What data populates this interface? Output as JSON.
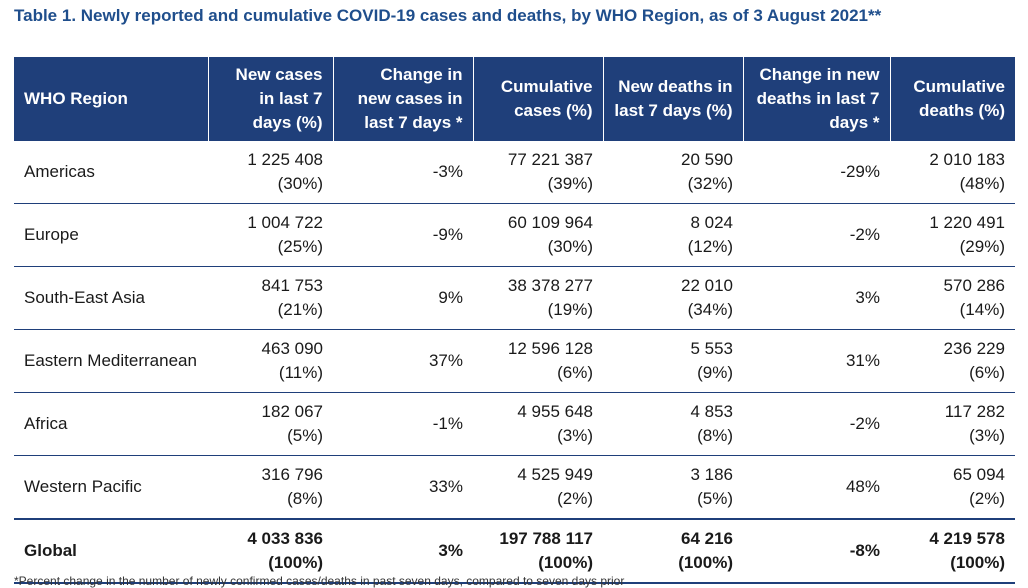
{
  "title": "Table 1. Newly reported and cumulative COVID-19 cases and deaths, by WHO Region, as of 3 August 2021**",
  "headers": {
    "region": "WHO Region",
    "new_cases": "New cases in last 7 days (%)",
    "change_cases": "Change in new cases in last 7 days *",
    "cum_cases": "Cumulative cases (%)",
    "new_deaths": "New deaths in last 7 days (%)",
    "change_deaths": "Change in new deaths in last 7 days *",
    "cum_deaths": "Cumulative deaths (%)"
  },
  "rows": [
    {
      "region": "Americas",
      "new_cases": "1 225 408",
      "new_cases_pct": "(30%)",
      "change_cases": "-3%",
      "cum_cases": "77 221 387",
      "cum_cases_pct": "(39%)",
      "new_deaths": "20 590",
      "new_deaths_pct": "(32%)",
      "change_deaths": "-29%",
      "cum_deaths": "2 010 183",
      "cum_deaths_pct": "(48%)"
    },
    {
      "region": "Europe",
      "new_cases": "1 004 722",
      "new_cases_pct": "(25%)",
      "change_cases": "-9%",
      "cum_cases": "60 109 964",
      "cum_cases_pct": "(30%)",
      "new_deaths": "8 024",
      "new_deaths_pct": "(12%)",
      "change_deaths": "-2%",
      "cum_deaths": "1 220 491",
      "cum_deaths_pct": "(29%)"
    },
    {
      "region": "South-East Asia",
      "new_cases": "841 753",
      "new_cases_pct": "(21%)",
      "change_cases": "9%",
      "cum_cases": "38 378 277",
      "cum_cases_pct": "(19%)",
      "new_deaths": "22 010",
      "new_deaths_pct": "(34%)",
      "change_deaths": "3%",
      "cum_deaths": "570 286",
      "cum_deaths_pct": "(14%)"
    },
    {
      "region": "Eastern Mediterranean",
      "new_cases": "463 090",
      "new_cases_pct": "(11%)",
      "change_cases": "37%",
      "cum_cases": "12 596 128",
      "cum_cases_pct": "(6%)",
      "new_deaths": "5 553",
      "new_deaths_pct": "(9%)",
      "change_deaths": "31%",
      "cum_deaths": "236 229",
      "cum_deaths_pct": "(6%)"
    },
    {
      "region": "Africa",
      "new_cases": "182 067",
      "new_cases_pct": "(5%)",
      "change_cases": "-1%",
      "cum_cases": "4 955 648",
      "cum_cases_pct": "(3%)",
      "new_deaths": "4 853",
      "new_deaths_pct": "(8%)",
      "change_deaths": "-2%",
      "cum_deaths": "117 282",
      "cum_deaths_pct": "(3%)"
    },
    {
      "region": "Western Pacific",
      "new_cases": "316 796",
      "new_cases_pct": "(8%)",
      "change_cases": "33%",
      "cum_cases": "4 525 949",
      "cum_cases_pct": "(2%)",
      "new_deaths": "3 186",
      "new_deaths_pct": "(5%)",
      "change_deaths": "48%",
      "cum_deaths": "65 094",
      "cum_deaths_pct": "(2%)"
    },
    {
      "region": "Global",
      "new_cases": "4 033 836",
      "new_cases_pct": "(100%)",
      "change_cases": "3%",
      "cum_cases": "197 788 117",
      "cum_cases_pct": "(100%)",
      "new_deaths": "64 216",
      "new_deaths_pct": "(100%)",
      "change_deaths": "-8%",
      "cum_deaths": "4 219 578",
      "cum_deaths_pct": "(100%)"
    }
  ],
  "footnote": "*Percent change in the number of newly confirmed cases/deaths in past seven days, compared to seven days prior"
}
